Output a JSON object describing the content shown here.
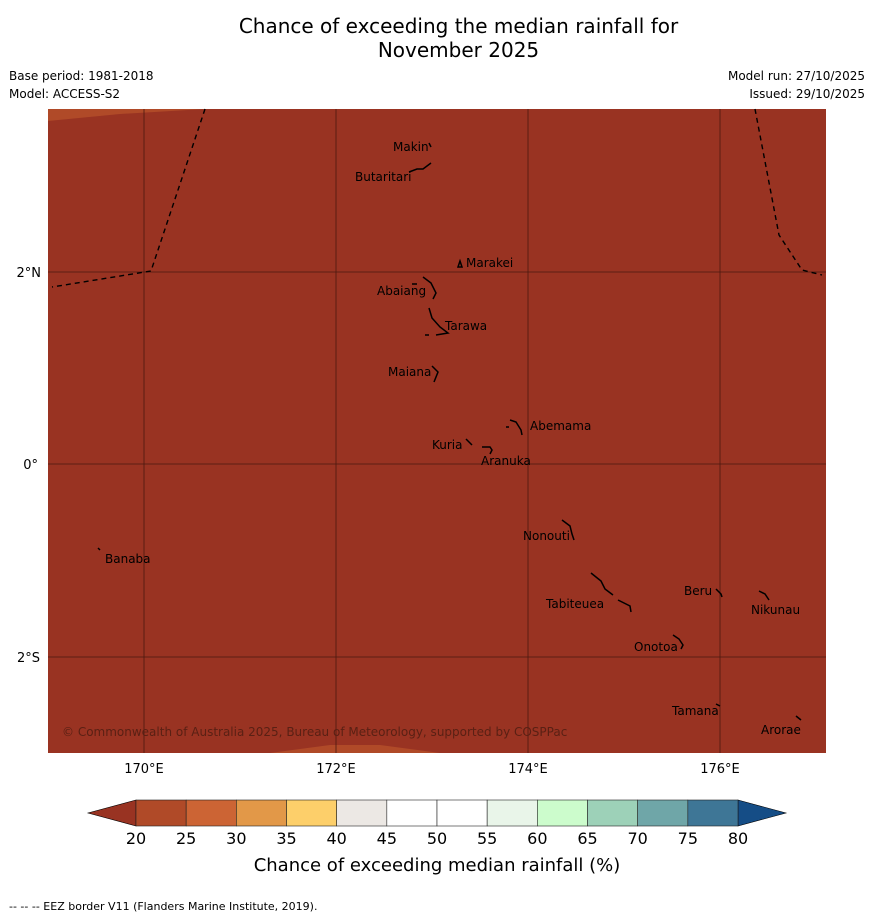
{
  "title_line1": "Chance of exceeding the median rainfall for",
  "title_line2": "November 2025",
  "base_period": "Base period: 1981-2018",
  "model": "Model: ACCESS-S2",
  "model_run": "Model run: 27/10/2025",
  "issued": "Issued: 29/10/2025",
  "copyright": "© Commonwealth of Australia 2025, Bureau of Meteorology, supported by COSPPac",
  "lon_labels": [
    "170°E",
    "172°E",
    "174°E",
    "176°E"
  ],
  "lat_labels": [
    "2°N",
    "0°",
    "2°S"
  ],
  "islands": [
    "Makin",
    "Butaritari",
    "Marakei",
    "Abaiang",
    "Tarawa",
    "Maiana",
    "Abemama",
    "Kuria",
    "Aranuka",
    "Nonouti",
    "Banaba",
    "Beru",
    "Nikunau",
    "Tabiteuea",
    "Onotoa",
    "Tamana",
    "Arorae"
  ],
  "map_fill_category": "20 or less",
  "colorbar": {
    "label": "Chance of exceeding median rainfall (%)",
    "ticks": [
      "20",
      "25",
      "30",
      "35",
      "40",
      "45",
      "50",
      "55",
      "60",
      "65",
      "70",
      "75",
      "80"
    ],
    "colors": [
      "#b04a28",
      "#cc6434",
      "#e29848",
      "#fdcf6a",
      "#ece8e4",
      "#ffffff",
      "#ffffff",
      "#e9f5e9",
      "#ccfccc",
      "#9dd1b8",
      "#6fa6a8",
      "#3e7696"
    ],
    "under_color": "#993322",
    "over_color": "#154d86"
  },
  "legend_note": "--  --  -- EEZ border V11 (Flanders Marine Institute, 2019)."
}
